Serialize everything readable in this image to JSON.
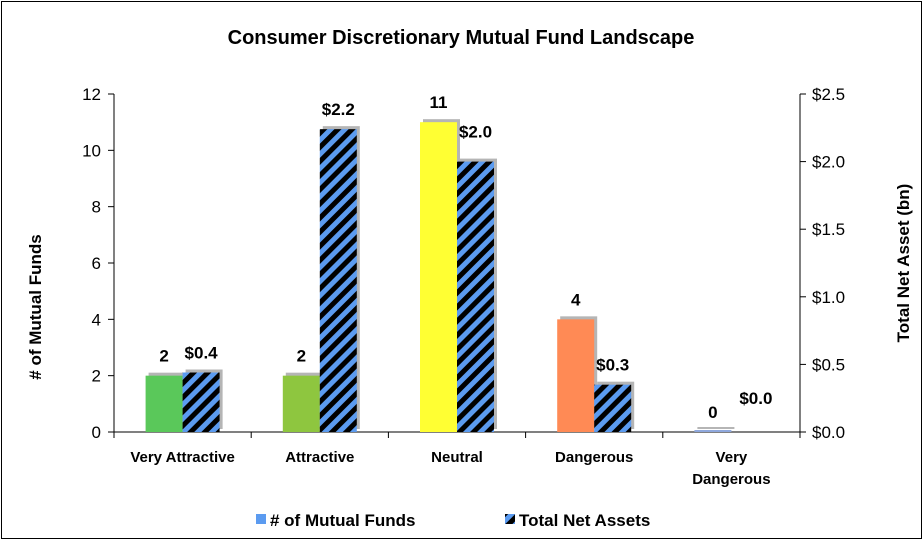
{
  "chart_data": {
    "type": "bar",
    "title": "Consumer Discretionary Mutual Fund Landscape",
    "categories": [
      [
        "Very Attractive"
      ],
      [
        "Attractive"
      ],
      [
        "Neutral"
      ],
      [
        "Dangerous"
      ],
      [
        "Very",
        "Dangerous"
      ]
    ],
    "series": [
      {
        "name": "# of Mutual Funds",
        "axis": "left",
        "values": [
          2,
          2,
          11,
          4,
          0
        ],
        "labels": [
          "2",
          "2",
          "11",
          "4",
          "0"
        ],
        "colors": [
          "#5ac85a",
          "#8ec63f",
          "#ffff33",
          "#ff8a55",
          "#8fa8dc"
        ],
        "legend_color": "#5b9bf0"
      },
      {
        "name": "Total Net Assets",
        "axis": "right",
        "values": [
          0.44,
          2.24,
          2.0,
          0.35,
          0.0
        ],
        "labels": [
          "$0.4",
          "$2.2",
          "$2.0",
          "$0.3",
          "$0.0"
        ],
        "pattern": "diagonal-stripes",
        "stripe_colors": [
          "#000000",
          "#5b9bf0"
        ]
      }
    ],
    "y_left": {
      "label": "# of Mutual Funds",
      "lim": [
        0,
        12
      ],
      "ticks": [
        0,
        2,
        4,
        6,
        8,
        10,
        12
      ],
      "tick_labels": [
        "0",
        "2",
        "4",
        "6",
        "8",
        "10",
        "12"
      ]
    },
    "y_right": {
      "label": "Total Net Asset (bn)",
      "lim": [
        0,
        2.5
      ],
      "ticks": [
        0,
        0.5,
        1.0,
        1.5,
        2.0,
        2.5
      ],
      "tick_labels": [
        "$0.0",
        "$0.5",
        "$1.0",
        "$1.5",
        "$2.0",
        "$2.5"
      ]
    },
    "grid": false,
    "legend": {
      "position": "bottom",
      "entries": [
        "# of Mutual Funds",
        "Total Net Assets"
      ]
    }
  }
}
